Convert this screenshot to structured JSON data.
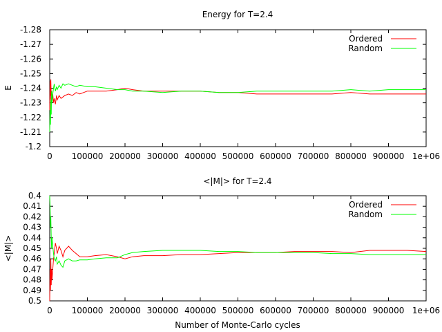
{
  "chart_data": [
    {
      "type": "line",
      "title": "Energy for T=2.4",
      "xlabel": "",
      "ylabel": "E",
      "xlim": [
        0,
        1000000
      ],
      "ylim": [
        -1.28,
        -1.2
      ],
      "y_reversed": true,
      "x_ticks": [
        "0",
        "100000",
        "200000",
        "300000",
        "400000",
        "500000",
        "600000",
        "700000",
        "800000",
        "900000",
        "1e+06"
      ],
      "y_ticks": [
        "-1.28",
        "-1.27",
        "-1.26",
        "-1.25",
        "-1.24",
        "-1.23",
        "-1.22",
        "-1.21",
        "-1.2"
      ],
      "legend_position": "top-right",
      "series": [
        {
          "name": "Ordered",
          "color": "#ff0000",
          "x": [
            0,
            1000,
            2000,
            3000,
            4000,
            5000,
            6000,
            8000,
            10000,
            12000,
            15000,
            18000,
            20000,
            25000,
            30000,
            35000,
            40000,
            50000,
            60000,
            70000,
            80000,
            100000,
            120000,
            150000,
            180000,
            200000,
            220000,
            250000,
            300000,
            350000,
            400000,
            450000,
            500000,
            550000,
            600000,
            650000,
            700000,
            750000,
            800000,
            850000,
            900000,
            950000,
            1000000
          ],
          "y": [
            -1.225,
            -1.245,
            -1.232,
            -1.246,
            -1.235,
            -1.238,
            -1.232,
            -1.236,
            -1.23,
            -1.233,
            -1.229,
            -1.235,
            -1.232,
            -1.235,
            -1.233,
            -1.234,
            -1.235,
            -1.236,
            -1.235,
            -1.237,
            -1.236,
            -1.238,
            -1.238,
            -1.238,
            -1.239,
            -1.24,
            -1.239,
            -1.238,
            -1.238,
            -1.238,
            -1.238,
            -1.237,
            -1.237,
            -1.236,
            -1.236,
            -1.236,
            -1.236,
            -1.236,
            -1.237,
            -1.236,
            -1.236,
            -1.236,
            -1.236
          ]
        },
        {
          "name": "Random",
          "color": "#00ff00",
          "x": [
            0,
            1000,
            2000,
            3000,
            4000,
            5000,
            6000,
            8000,
            10000,
            12000,
            15000,
            18000,
            20000,
            25000,
            30000,
            35000,
            40000,
            50000,
            60000,
            70000,
            80000,
            100000,
            120000,
            150000,
            180000,
            200000,
            220000,
            250000,
            300000,
            350000,
            400000,
            450000,
            500000,
            550000,
            600000,
            650000,
            700000,
            750000,
            800000,
            850000,
            900000,
            950000,
            1000000
          ],
          "y": [
            -1.21,
            -1.225,
            -1.215,
            -1.232,
            -1.222,
            -1.238,
            -1.23,
            -1.236,
            -1.24,
            -1.243,
            -1.238,
            -1.241,
            -1.239,
            -1.242,
            -1.24,
            -1.243,
            -1.242,
            -1.243,
            -1.242,
            -1.241,
            -1.242,
            -1.241,
            -1.241,
            -1.24,
            -1.239,
            -1.239,
            -1.238,
            -1.238,
            -1.237,
            -1.238,
            -1.238,
            -1.237,
            -1.237,
            -1.238,
            -1.238,
            -1.238,
            -1.238,
            -1.238,
            -1.239,
            -1.238,
            -1.239,
            -1.239,
            -1.239
          ]
        }
      ]
    },
    {
      "type": "line",
      "title": "<|M|> for T=2.4",
      "xlabel": "Number of Monte-Carlo cycles",
      "ylabel": "<|M|>",
      "xlim": [
        0,
        1000000
      ],
      "ylim": [
        0.4,
        0.5
      ],
      "y_reversed": true,
      "x_ticks": [
        "0",
        "100000",
        "200000",
        "300000",
        "400000",
        "500000",
        "600000",
        "700000",
        "800000",
        "900000",
        "1e+06"
      ],
      "y_ticks": [
        "0.4",
        "0.41",
        "0.42",
        "0.43",
        "0.44",
        "0.45",
        "0.46",
        "0.47",
        "0.48",
        "0.49",
        "0.5"
      ],
      "legend_position": "top-right",
      "series": [
        {
          "name": "Ordered",
          "color": "#ff0000",
          "x": [
            0,
            1000,
            2000,
            3000,
            4000,
            5000,
            6000,
            8000,
            10000,
            12000,
            15000,
            18000,
            20000,
            25000,
            30000,
            35000,
            40000,
            50000,
            60000,
            70000,
            80000,
            100000,
            120000,
            150000,
            180000,
            200000,
            220000,
            250000,
            300000,
            350000,
            400000,
            450000,
            500000,
            550000,
            600000,
            650000,
            700000,
            750000,
            800000,
            850000,
            900000,
            950000,
            1000000
          ],
          "y": [
            0.5,
            0.47,
            0.49,
            0.46,
            0.485,
            0.47,
            0.48,
            0.47,
            0.46,
            0.455,
            0.445,
            0.45,
            0.455,
            0.448,
            0.452,
            0.458,
            0.452,
            0.448,
            0.452,
            0.455,
            0.458,
            0.458,
            0.457,
            0.456,
            0.458,
            0.46,
            0.458,
            0.457,
            0.457,
            0.456,
            0.456,
            0.455,
            0.454,
            0.454,
            0.454,
            0.453,
            0.453,
            0.453,
            0.454,
            0.452,
            0.452,
            0.452,
            0.453
          ]
        },
        {
          "name": "Random",
          "color": "#00ff00",
          "x": [
            0,
            1000,
            2000,
            3000,
            4000,
            5000,
            6000,
            8000,
            10000,
            12000,
            15000,
            18000,
            20000,
            25000,
            30000,
            35000,
            40000,
            50000,
            60000,
            70000,
            80000,
            100000,
            120000,
            150000,
            180000,
            200000,
            220000,
            250000,
            300000,
            350000,
            400000,
            450000,
            500000,
            550000,
            600000,
            650000,
            700000,
            750000,
            800000,
            850000,
            900000,
            950000,
            1000000
          ],
          "y": [
            0.4,
            0.41,
            0.43,
            0.42,
            0.44,
            0.45,
            0.44,
            0.448,
            0.455,
            0.46,
            0.462,
            0.458,
            0.465,
            0.462,
            0.466,
            0.468,
            0.462,
            0.46,
            0.462,
            0.462,
            0.461,
            0.461,
            0.46,
            0.459,
            0.459,
            0.456,
            0.454,
            0.453,
            0.452,
            0.452,
            0.452,
            0.453,
            0.453,
            0.454,
            0.454,
            0.454,
            0.454,
            0.455,
            0.455,
            0.456,
            0.456,
            0.456,
            0.456
          ]
        }
      ]
    }
  ]
}
